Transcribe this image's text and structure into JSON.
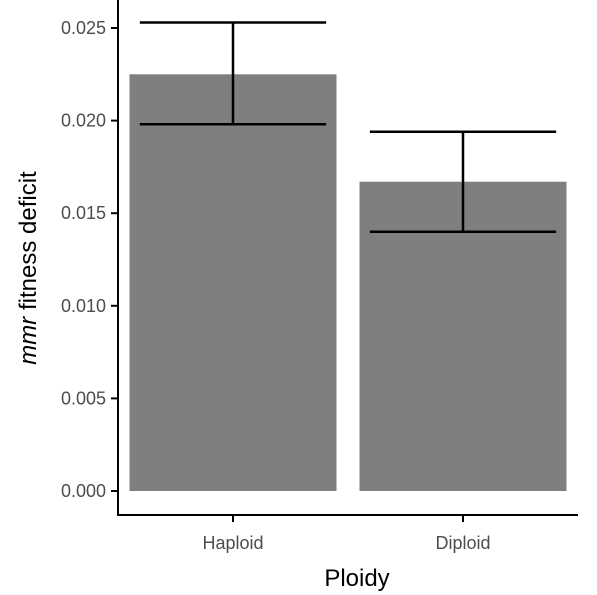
{
  "chart_data": {
    "type": "bar",
    "categories": [
      "Haploid",
      "Diploid"
    ],
    "values": [
      0.0225,
      0.0167
    ],
    "error_low": [
      0.0198,
      0.014
    ],
    "error_high": [
      0.0253,
      0.0194
    ],
    "xlabel": "Ploidy",
    "ylabel_italic": "mmr",
    "ylabel_rest": " fitness deficit",
    "ylim": [
      0,
      0.0265
    ],
    "yticks": [
      0.0,
      0.005,
      0.01,
      0.015,
      0.02,
      0.025
    ],
    "ytick_labels": [
      "0.000",
      "0.005",
      "0.010",
      "0.015",
      "0.020",
      "0.025"
    ],
    "bar_color": "#7f7f7f",
    "errorbar_color": "#000000",
    "grid": false,
    "legend": "none"
  }
}
